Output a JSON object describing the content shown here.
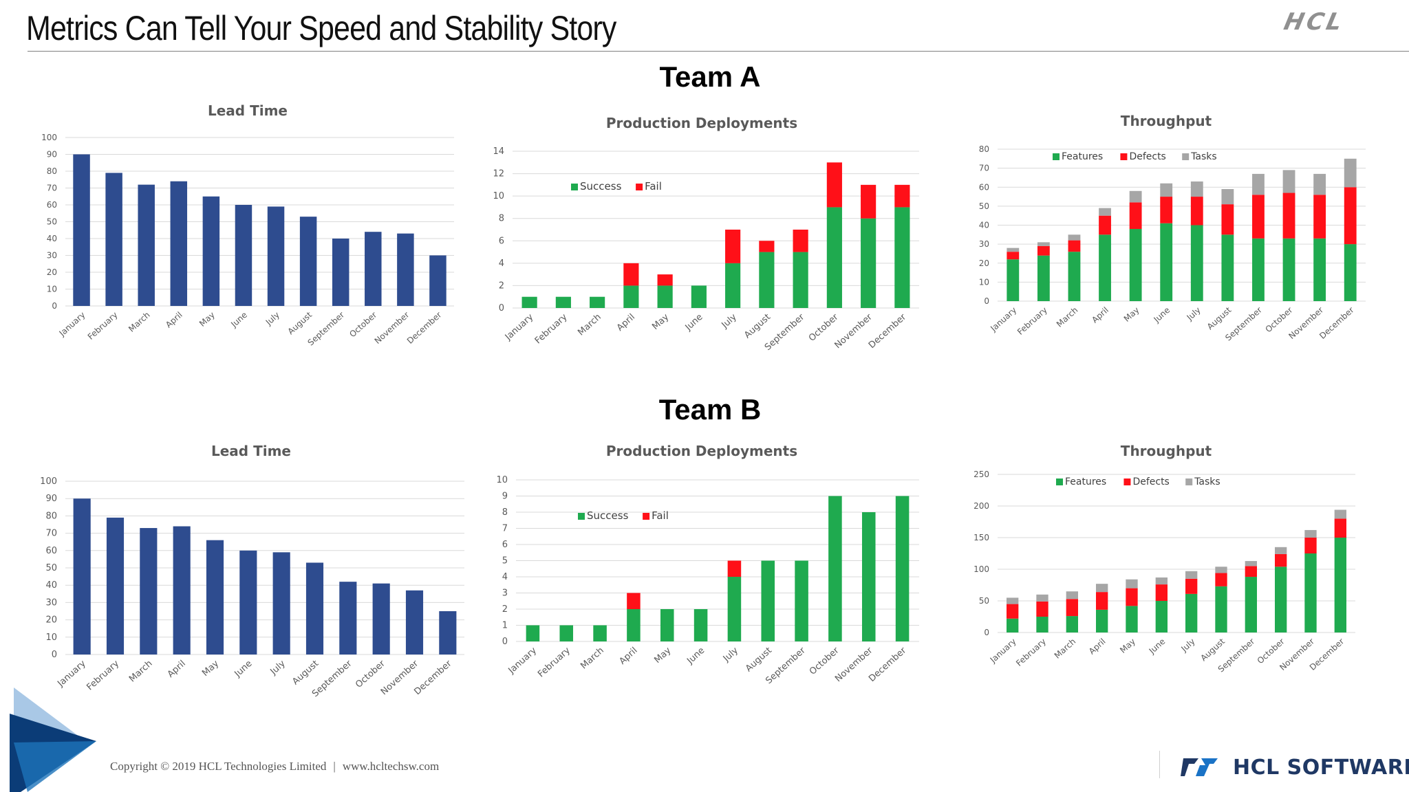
{
  "slide": {
    "title": "Metrics Can Tell Your Speed and Stability Story",
    "team_a_label": "Team A",
    "team_b_label": "Team B",
    "logo_top": "HCL",
    "footer": {
      "copyright": "Copyright © 2019 HCL Technologies Limited",
      "separator": "|",
      "website": "www.hcltechsw.com"
    },
    "brand": "HCL SOFTWARE",
    "colors": {
      "navy": "#2e4c8f",
      "green": "#1faa4f",
      "red": "#ff1018",
      "gray": "#a6a6a6"
    }
  },
  "chart_data": [
    {
      "id": "teamA_lead",
      "type": "bar",
      "title": "Lead Time",
      "categories": [
        "January",
        "February",
        "March",
        "April",
        "May",
        "June",
        "July",
        "August",
        "September",
        "October",
        "November",
        "December"
      ],
      "series": [
        {
          "values": [
            90,
            79,
            72,
            74,
            65,
            60,
            59,
            53,
            40,
            44,
            43,
            30
          ],
          "color": "#2e4c8f"
        }
      ],
      "ylim": [
        0,
        100
      ],
      "yticks": [
        0,
        10,
        20,
        30,
        40,
        50,
        60,
        70,
        80,
        90,
        100
      ],
      "grid": true
    },
    {
      "id": "teamA_deploy",
      "type": "bar",
      "stacked": true,
      "title": "Production Deployments",
      "categories": [
        "January",
        "February",
        "March",
        "April",
        "May",
        "June",
        "July",
        "August",
        "September",
        "October",
        "November",
        "December"
      ],
      "series": [
        {
          "name": "Success",
          "values": [
            1,
            1,
            1,
            2,
            2,
            2,
            4,
            5,
            5,
            9,
            8,
            9
          ],
          "color": "#1faa4f"
        },
        {
          "name": "Fail",
          "values": [
            0,
            0,
            0,
            2,
            1,
            0,
            3,
            1,
            2,
            4,
            3,
            2
          ],
          "color": "#ff1018"
        }
      ],
      "ylim": [
        0,
        14
      ],
      "yticks": [
        0,
        2,
        4,
        6,
        8,
        10,
        12,
        14
      ],
      "legend": "top-left",
      "grid": true
    },
    {
      "id": "teamA_throughput",
      "type": "bar",
      "stacked": true,
      "title": "Throughput",
      "categories": [
        "January",
        "February",
        "March",
        "April",
        "May",
        "June",
        "July",
        "August",
        "September",
        "October",
        "November",
        "December"
      ],
      "series": [
        {
          "name": "Features",
          "values": [
            22,
            24,
            26,
            35,
            38,
            41,
            40,
            35,
            33,
            33,
            33,
            30
          ],
          "color": "#1faa4f"
        },
        {
          "name": "Defects",
          "values": [
            4,
            5,
            6,
            10,
            14,
            14,
            15,
            16,
            23,
            24,
            23,
            30
          ],
          "color": "#ff1018"
        },
        {
          "name": "Tasks",
          "values": [
            2,
            2,
            3,
            4,
            6,
            7,
            8,
            8,
            11,
            12,
            11,
            15
          ],
          "color": "#a6a6a6"
        }
      ],
      "ylim": [
        0,
        80
      ],
      "yticks": [
        0,
        10,
        20,
        30,
        40,
        50,
        60,
        70,
        80
      ],
      "legend": "top-left",
      "grid": true
    },
    {
      "id": "teamB_lead",
      "type": "bar",
      "title": "Lead Time",
      "categories": [
        "January",
        "February",
        "March",
        "April",
        "May",
        "June",
        "July",
        "August",
        "September",
        "October",
        "November",
        "December"
      ],
      "series": [
        {
          "values": [
            90,
            79,
            73,
            74,
            66,
            60,
            59,
            53,
            42,
            41,
            37,
            25
          ],
          "color": "#2e4c8f"
        }
      ],
      "ylim": [
        0,
        100
      ],
      "yticks": [
        0,
        10,
        20,
        30,
        40,
        50,
        60,
        70,
        80,
        90,
        100
      ],
      "grid": true
    },
    {
      "id": "teamB_deploy",
      "type": "bar",
      "stacked": true,
      "title": "Production Deployments",
      "categories": [
        "January",
        "February",
        "March",
        "April",
        "May",
        "June",
        "July",
        "August",
        "September",
        "October",
        "November",
        "December"
      ],
      "series": [
        {
          "name": "Success",
          "values": [
            1,
            1,
            1,
            2,
            2,
            2,
            4,
            5,
            5,
            9,
            8,
            9
          ],
          "color": "#1faa4f"
        },
        {
          "name": "Fail",
          "values": [
            0,
            0,
            0,
            1,
            0,
            0,
            1,
            0,
            0,
            0,
            0,
            0
          ],
          "color": "#ff1018"
        }
      ],
      "ylim": [
        0,
        10
      ],
      "yticks": [
        0,
        1,
        2,
        3,
        4,
        5,
        6,
        7,
        8,
        9,
        10
      ],
      "legend": "top-left",
      "grid": true
    },
    {
      "id": "teamB_throughput",
      "type": "bar",
      "stacked": true,
      "title": "Throughput",
      "categories": [
        "January",
        "February",
        "March",
        "April",
        "May",
        "June",
        "July",
        "August",
        "September",
        "October",
        "November",
        "December"
      ],
      "series": [
        {
          "name": "Features",
          "values": [
            22,
            25,
            26,
            36,
            42,
            50,
            61,
            73,
            88,
            104,
            125,
            150
          ],
          "color": "#1faa4f"
        },
        {
          "name": "Defects",
          "values": [
            23,
            24,
            27,
            28,
            28,
            26,
            24,
            21,
            17,
            20,
            25,
            30
          ],
          "color": "#ff1018"
        },
        {
          "name": "Tasks",
          "values": [
            10,
            11,
            12,
            13,
            14,
            11,
            12,
            10,
            8,
            11,
            12,
            14
          ],
          "color": "#a6a6a6"
        }
      ],
      "ylim": [
        0,
        250
      ],
      "yticks": [
        0,
        50,
        100,
        150,
        200,
        250
      ],
      "legend": "top-left",
      "grid": true
    }
  ]
}
